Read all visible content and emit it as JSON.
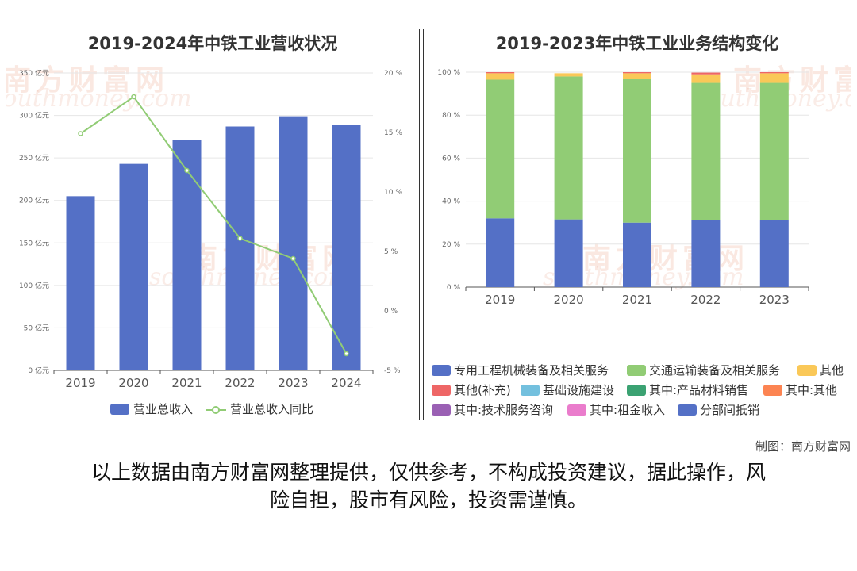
{
  "watermark": {
    "brand": "南方财富网",
    "url": "southmoney.com"
  },
  "credit": "制图：南方财富网",
  "disclaimer_line1": "以上数据由南方财富网整理提供，仅供参考，不构成投资建议，据此操作，风",
  "disclaimer_line2": "险自担，股市有风险，投资需谨慎。",
  "chart_data": [
    {
      "type": "bar",
      "title": "2019-2024年中铁工业营收状况",
      "categories": [
        "2019",
        "2020",
        "2021",
        "2022",
        "2023",
        "2024"
      ],
      "ylim_left": [
        0,
        350
      ],
      "ylim_right": [
        -5,
        20
      ],
      "left_ticks": [
        "0 亿元",
        "50 亿元",
        "100 亿元",
        "150 亿元",
        "200 亿元",
        "250 亿元",
        "300 亿元",
        "350 亿元"
      ],
      "right_ticks": [
        "-5 %",
        "0 %",
        "5 %",
        "10 %",
        "15 %",
        "20 %"
      ],
      "series": [
        {
          "name": "营业总收入",
          "kind": "bar",
          "axis": "left",
          "color": "#5470c6",
          "values": [
            205,
            243,
            271,
            287,
            299,
            289
          ]
        },
        {
          "name": "营业总收入同比",
          "kind": "line",
          "axis": "right",
          "color": "#91cc75",
          "values": [
            14.9,
            18.0,
            11.8,
            6.1,
            4.4,
            -3.6
          ]
        }
      ]
    },
    {
      "type": "bar",
      "stacked": true,
      "title": "2019-2023年中铁工业业务结构变化",
      "categories": [
        "2019",
        "2020",
        "2021",
        "2022",
        "2023"
      ],
      "ylim": [
        0,
        100
      ],
      "y_ticks": [
        "0 %",
        "20 %",
        "40 %",
        "60 %",
        "80 %",
        "100 %"
      ],
      "series": [
        {
          "name": "专用工程机械装备及相关服务",
          "color": "#5470c6",
          "values": [
            32,
            31.5,
            30,
            31,
            31
          ]
        },
        {
          "name": "交通运输装备及相关服务",
          "color": "#91cc75",
          "values": [
            64.5,
            66.5,
            67,
            64,
            64
          ]
        },
        {
          "name": "其他",
          "color": "#fac858",
          "values": [
            3,
            1.5,
            2.5,
            4,
            4.5
          ]
        },
        {
          "name": "其他(补充)",
          "color": "#ee6666",
          "values": [
            0.5,
            0,
            0.5,
            0.8,
            0.5
          ]
        },
        {
          "name": "基础设施建设",
          "color": "#73c0de",
          "values": [
            0,
            0,
            0,
            0,
            0
          ]
        },
        {
          "name": "其中:产品材料销售",
          "color": "#3ba272",
          "values": [
            0,
            0,
            0,
            0,
            0
          ]
        },
        {
          "name": "其中:其他",
          "color": "#fc8452",
          "values": [
            0,
            0,
            0,
            0,
            0
          ]
        },
        {
          "name": "其中:技术服务咨询",
          "color": "#9a60b4",
          "values": [
            0,
            0,
            0,
            0,
            0
          ]
        },
        {
          "name": "其中:租金收入",
          "color": "#ea7ccc",
          "values": [
            0,
            0,
            0,
            0,
            0
          ]
        },
        {
          "name": "分部间抵销",
          "color": "#5470c6",
          "values": [
            0,
            0,
            0,
            0,
            0
          ]
        }
      ]
    }
  ]
}
